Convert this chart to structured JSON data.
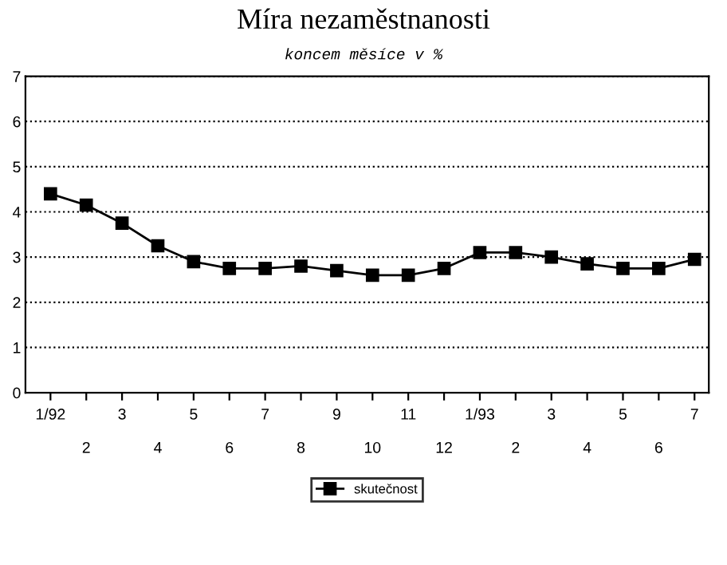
{
  "chart_data": {
    "type": "line",
    "title": "Míra nezaměstnanosti",
    "subtitle": "koncem měsíce v %",
    "categories": [
      "1/92",
      "2",
      "3",
      "4",
      "5",
      "6",
      "7",
      "8",
      "9",
      "10",
      "11",
      "12",
      "1/93",
      "2",
      "3",
      "4",
      "5",
      "6",
      "7"
    ],
    "series": [
      {
        "name": "skutečnost",
        "color": "#000000",
        "values": [
          4.4,
          4.15,
          3.75,
          3.25,
          2.9,
          2.75,
          2.75,
          2.8,
          2.7,
          2.6,
          2.6,
          2.75,
          3.1,
          3.1,
          3.0,
          2.85,
          2.75,
          2.75,
          2.95
        ]
      }
    ],
    "ylim": [
      0,
      7
    ],
    "yticks": [
      0,
      1,
      2,
      3,
      4,
      5,
      6,
      7
    ],
    "grid": "y",
    "legend": "bottom",
    "marker": "square",
    "line_style": "solid"
  }
}
